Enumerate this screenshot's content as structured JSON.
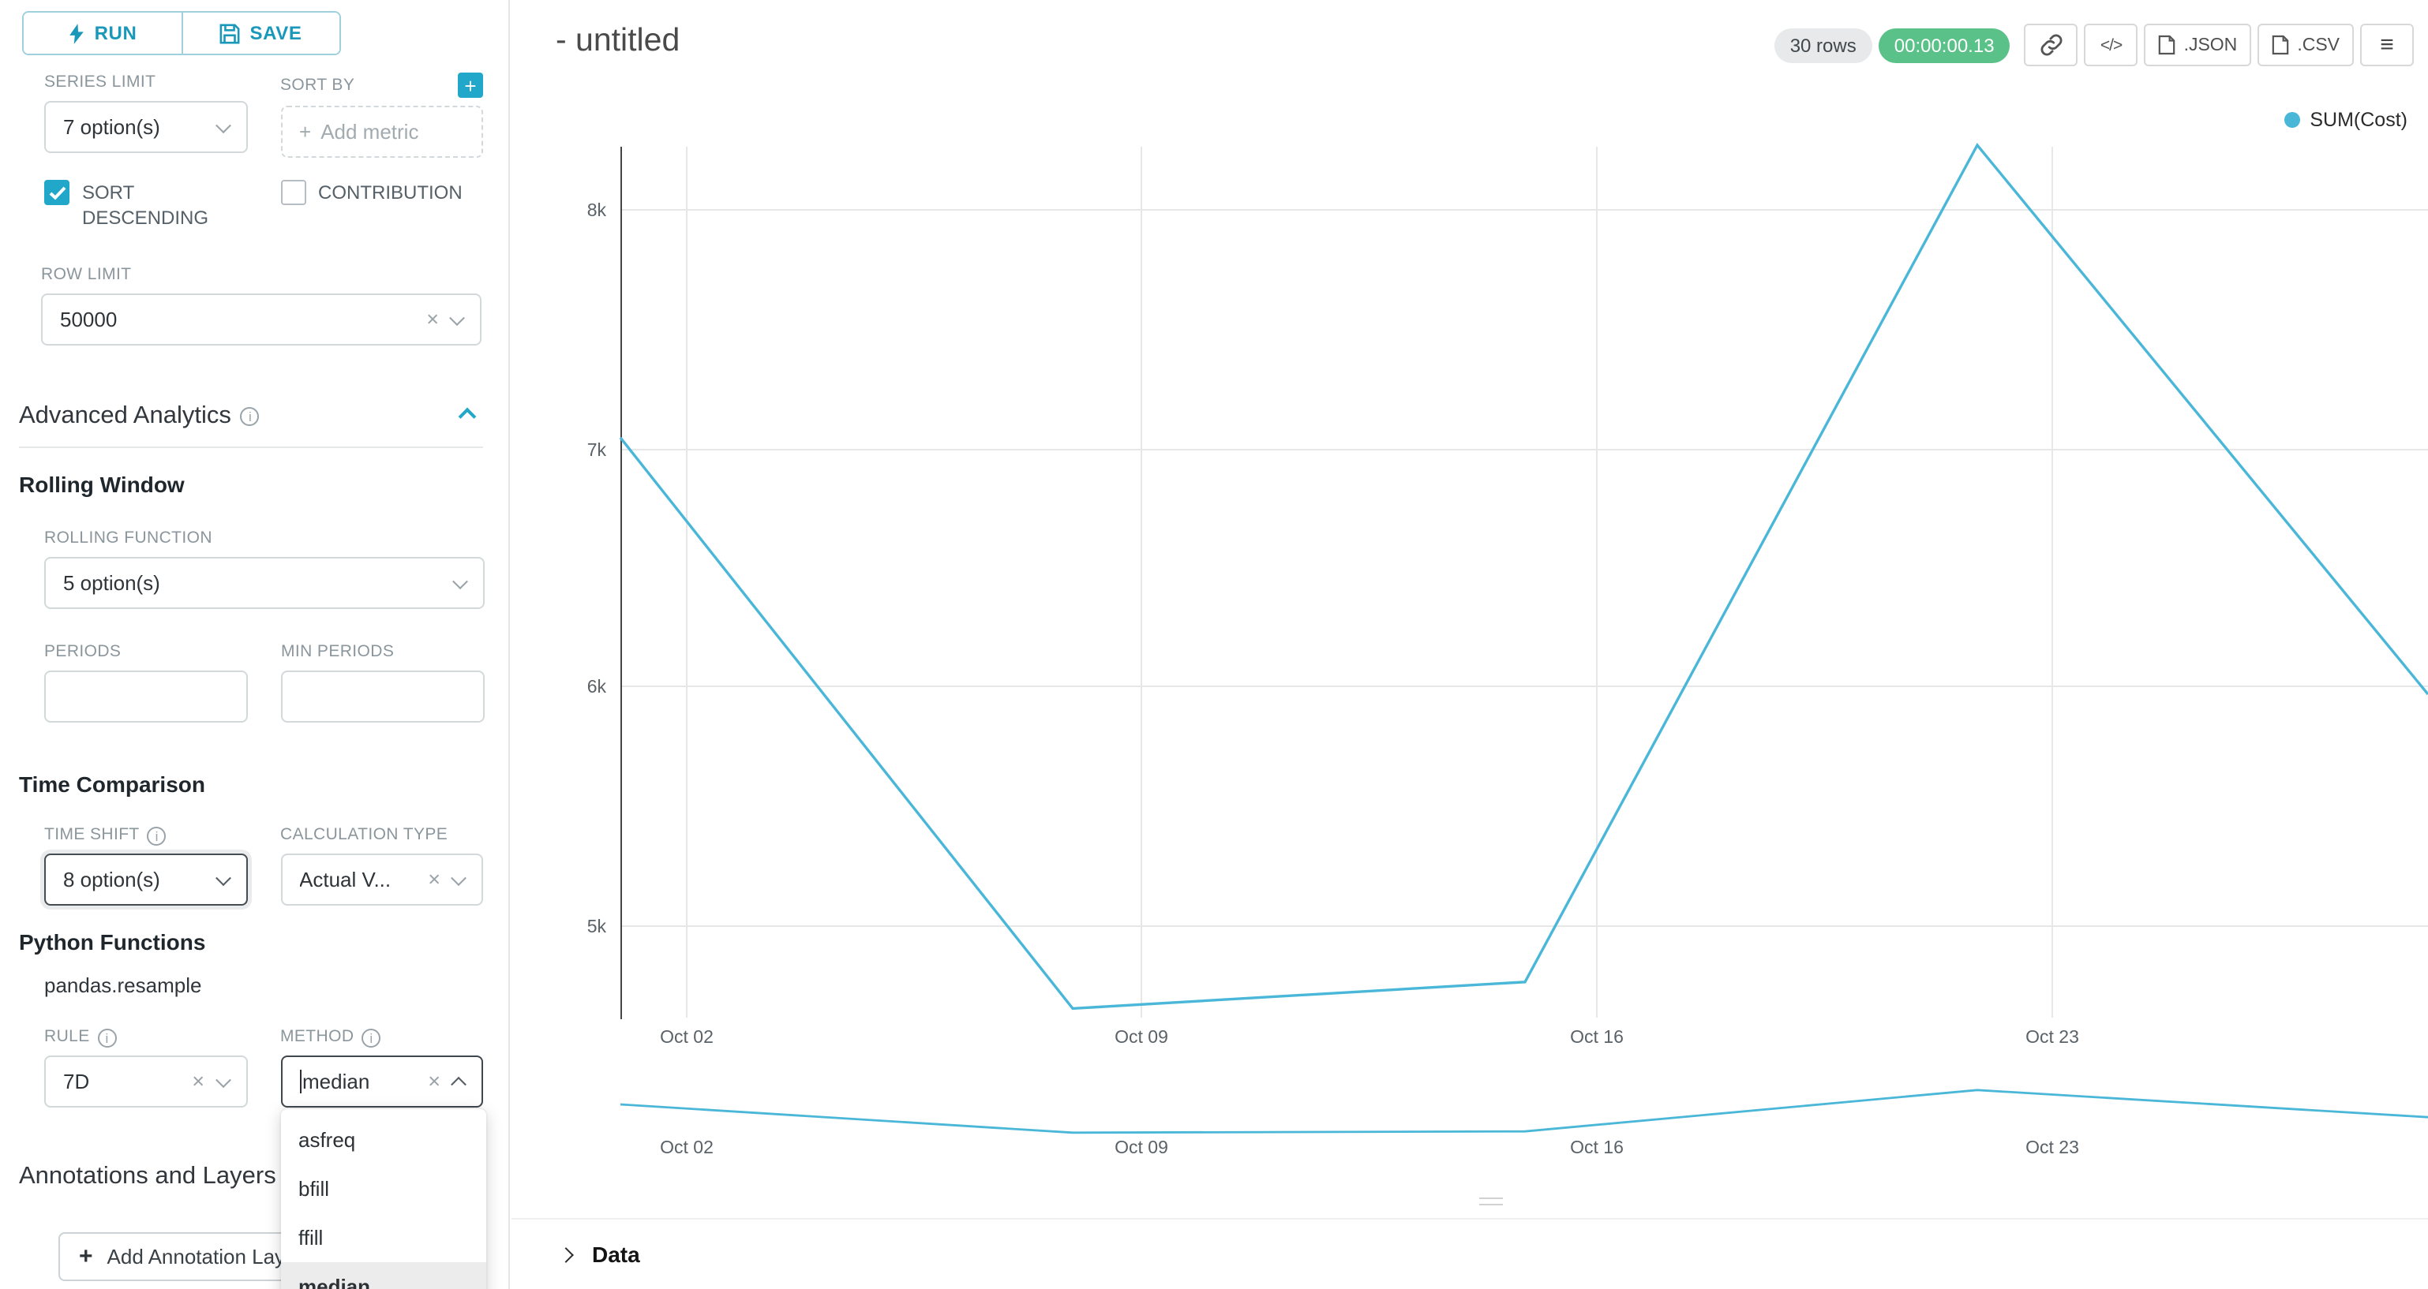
{
  "icons": {
    "plus": "+",
    "close": "×",
    "menu": "≡",
    "code": "</>",
    "info": "i"
  },
  "sidebar": {
    "run_label": "RUN",
    "save_label": "SAVE",
    "series_limit": {
      "label": "SERIES LIMIT",
      "value": "7 option(s)"
    },
    "sort_by": {
      "label": "SORT BY",
      "placeholder": "Add metric"
    },
    "sort_descending": {
      "label": "SORT DESCENDING",
      "checked": true
    },
    "contribution": {
      "label": "CONTRIBUTION",
      "checked": false
    },
    "row_limit": {
      "label": "ROW LIMIT",
      "value": "50000"
    },
    "advanced_analytics": {
      "title": "Advanced Analytics"
    },
    "rolling_window": {
      "title": "Rolling Window",
      "rolling_function": {
        "label": "ROLLING FUNCTION",
        "value": "5 option(s)"
      },
      "periods": {
        "label": "PERIODS",
        "value": ""
      },
      "min_periods": {
        "label": "MIN PERIODS",
        "value": ""
      }
    },
    "time_comparison": {
      "title": "Time Comparison",
      "time_shift": {
        "label": "TIME SHIFT",
        "value": "8 option(s)"
      },
      "calculation_type": {
        "label": "CALCULATION TYPE",
        "value": "Actual V..."
      }
    },
    "python_functions": {
      "title": "Python Functions",
      "subtitle": "pandas.resample",
      "rule": {
        "label": "RULE",
        "value": "7D"
      },
      "method": {
        "label": "METHOD",
        "value": "median",
        "options": [
          "asfreq",
          "bfill",
          "ffill",
          "median"
        ],
        "selected": "median"
      }
    },
    "annotations": {
      "title": "Annotations and Layers",
      "add_button": "Add Annotation Layer"
    }
  },
  "header": {
    "title": "- untitled",
    "rows_badge": "30 rows",
    "timer_badge": "00:00:00.13",
    "json_label": ".JSON",
    "csv_label": ".CSV"
  },
  "chart_data": {
    "type": "line",
    "title": "",
    "legend": [
      {
        "name": "SUM(Cost)",
        "color": "#4ab7d8"
      }
    ],
    "legend_position": "top-right",
    "grid": true,
    "x": [
      "Oct 01",
      "Oct 08",
      "Oct 15",
      "Oct 22",
      "Oct 29"
    ],
    "series": [
      {
        "name": "SUM(Cost)",
        "values": [
          7050,
          4670,
          4780,
          8270,
          5980
        ]
      }
    ],
    "x_tick_labels": [
      "Oct 02",
      "Oct 09",
      "Oct 16",
      "Oct 23"
    ],
    "y_tick_labels": [
      "8k",
      "7k",
      "6k",
      "5k"
    ],
    "y_tick_values": [
      8000,
      7000,
      6000,
      5000
    ],
    "ylim": [
      4400,
      8500
    ]
  },
  "mini_chart": {
    "type": "line",
    "note": "overview strip of same series",
    "x_tick_labels": [
      "Oct 02",
      "Oct 09",
      "Oct 16",
      "Oct 23"
    ]
  },
  "data_panel": {
    "label": "Data"
  }
}
